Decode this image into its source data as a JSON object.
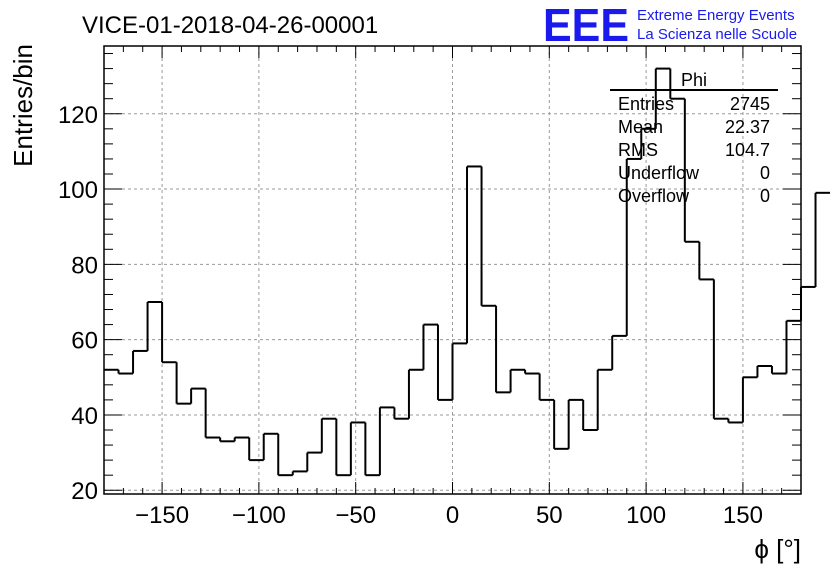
{
  "chart_data": {
    "type": "bar",
    "style": "step-histogram",
    "title": "VICE-01-2018-04-26-00001",
    "xlabel": "ϕ [°]",
    "ylabel": "Entries/bin",
    "xlim": [
      -180,
      180
    ],
    "ylim": [
      19,
      138
    ],
    "bin_width": 7.5,
    "x_ticks": [
      -150,
      -100,
      -50,
      0,
      50,
      100,
      150
    ],
    "x_tick_labels": [
      "−150",
      "−100",
      "−50",
      "0",
      "50",
      "100",
      "150"
    ],
    "y_ticks": [
      20,
      40,
      60,
      80,
      100,
      120
    ],
    "y_tick_labels": [
      "20",
      "40",
      "60",
      "80",
      "100",
      "120"
    ],
    "grid": true,
    "series": [
      {
        "name": "Phi",
        "bin_edges_start": -180,
        "values": [
          52,
          51,
          57,
          70,
          54,
          43,
          47,
          34,
          33,
          34,
          28,
          35,
          24,
          25,
          30,
          39,
          24,
          38,
          24,
          42,
          39,
          52,
          64,
          44,
          59,
          106,
          69,
          46,
          52,
          51,
          44,
          31,
          44,
          36,
          52,
          61,
          108,
          116,
          132,
          124,
          86,
          76,
          39,
          38,
          50,
          53,
          51,
          65,
          74,
          99
        ]
      }
    ]
  },
  "stats_box": {
    "title": "Phi",
    "rows": [
      {
        "label": "Entries",
        "value": "2745"
      },
      {
        "label": "Mean",
        "value": "22.37"
      },
      {
        "label": "RMS",
        "value": "104.7"
      },
      {
        "label": "Underflow",
        "value": "0"
      },
      {
        "label": "Overflow",
        "value": "0"
      }
    ]
  },
  "logo": {
    "mark": "EEE",
    "line1": "Extreme Energy Events",
    "line2": "La Scienza nelle Scuole",
    "color": "#1a1aee"
  }
}
